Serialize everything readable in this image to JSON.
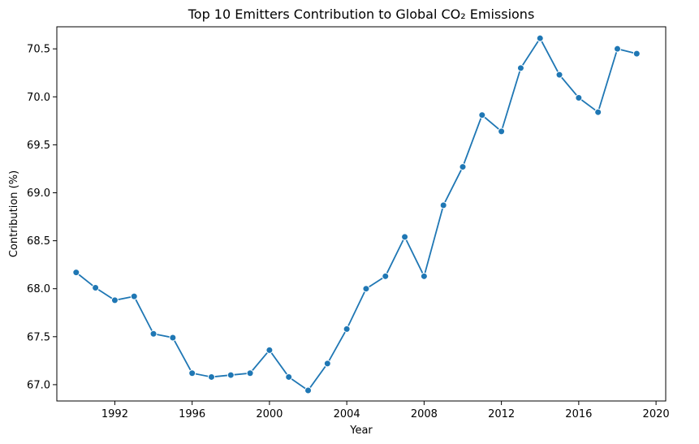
{
  "chart_data": {
    "type": "line",
    "title": "Top 10 Emitters Contribution to Global CO₂ Emissions",
    "xlabel": "Year",
    "ylabel": "Contribution (%)",
    "xlim": [
      1989,
      2020.5
    ],
    "ylim": [
      66.83,
      70.73
    ],
    "xticks": [
      1992,
      1996,
      2000,
      2004,
      2008,
      2012,
      2016,
      2020
    ],
    "yticks": [
      67.0,
      67.5,
      68.0,
      68.5,
      69.0,
      69.5,
      70.0,
      70.5
    ],
    "grid": false,
    "color": "#1f77b4",
    "x": [
      1990,
      1991,
      1992,
      1993,
      1994,
      1995,
      1996,
      1997,
      1998,
      1999,
      2000,
      2001,
      2002,
      2003,
      2004,
      2005,
      2006,
      2007,
      2008,
      2009,
      2010,
      2011,
      2012,
      2013,
      2014,
      2015,
      2016,
      2017,
      2018,
      2019
    ],
    "y": [
      68.17,
      68.01,
      67.88,
      67.92,
      67.53,
      67.49,
      67.12,
      67.08,
      67.1,
      67.12,
      67.36,
      67.08,
      66.94,
      67.22,
      67.58,
      68.0,
      68.13,
      68.54,
      68.13,
      68.87,
      69.27,
      69.81,
      69.64,
      70.3,
      70.61,
      70.23,
      69.99,
      69.84,
      70.5,
      70.45
    ]
  }
}
